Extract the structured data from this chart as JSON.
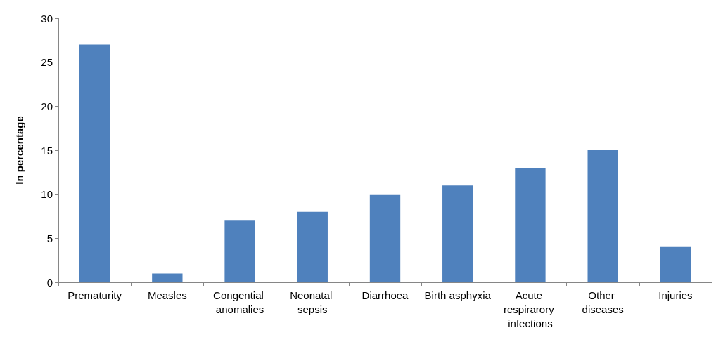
{
  "chart_data": {
    "type": "bar",
    "ylabel": "In percentage",
    "categories": [
      "Prematurity",
      "Measles",
      "Congential anomalies",
      "Neonatal sepsis",
      "Diarrhoea",
      "Birth asphyxia",
      "Acute respirarory infections",
      "Other diseases",
      "Injuries"
    ],
    "values": [
      27,
      1,
      7,
      8,
      10,
      11,
      13,
      15,
      4
    ],
    "color": "#4f81bd",
    "ylim": [
      0,
      30
    ],
    "yticks": [
      0,
      5,
      10,
      15,
      20,
      25,
      30
    ],
    "grid": false
  }
}
